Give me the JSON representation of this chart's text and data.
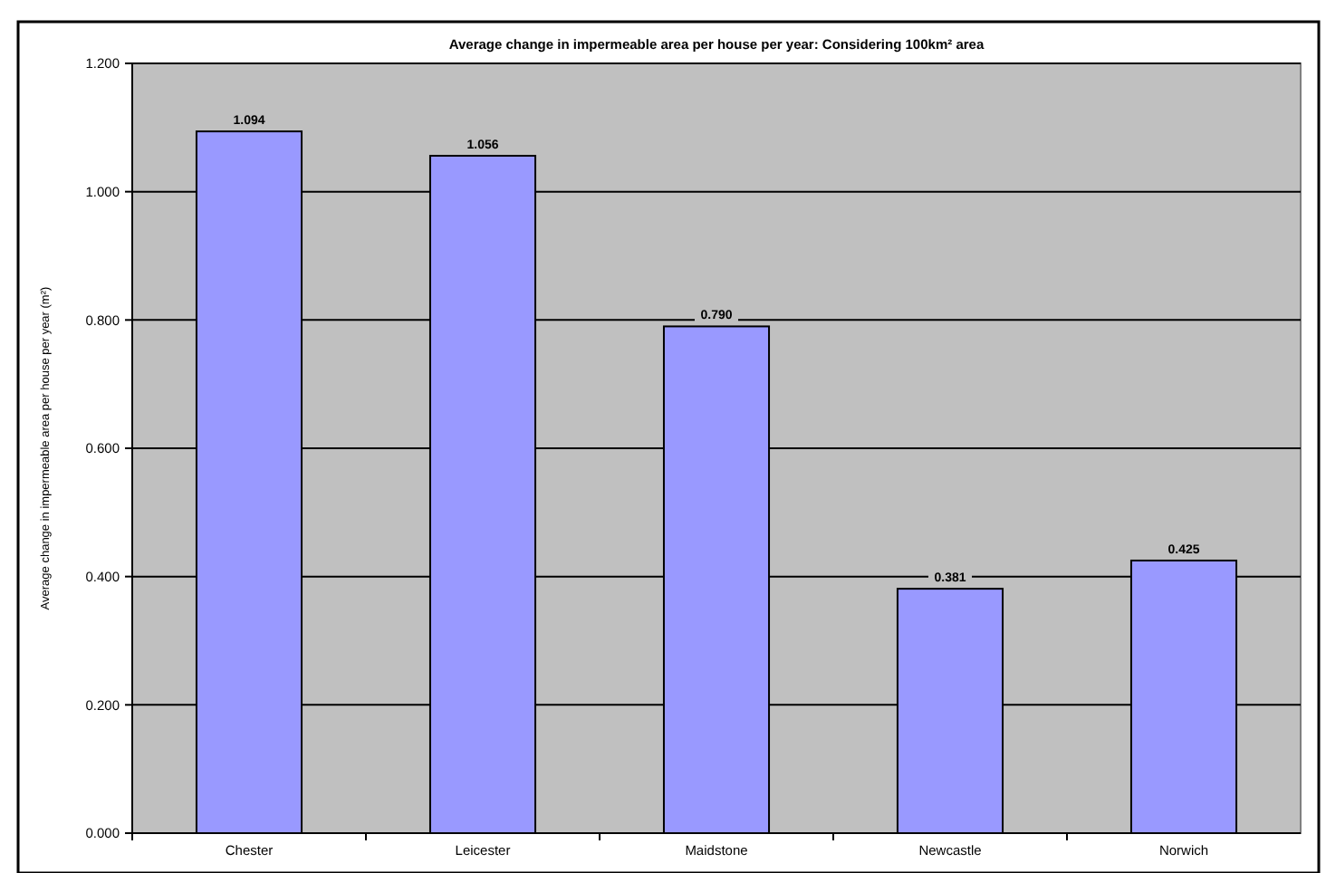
{
  "chart_data": {
    "type": "bar",
    "title": "Average change in impermeable area per house per year: Considering 100km² area",
    "ylabel": "Average change in impermeable area per house per year (m²)",
    "categories": [
      "Chester",
      "Leicester",
      "Maidstone",
      "Newcastle",
      "Norwich"
    ],
    "values": [
      1.094,
      1.056,
      0.79,
      0.381,
      0.425
    ],
    "value_labels": [
      "1.094",
      "1.056",
      "0.790",
      "0.381",
      "0.425"
    ],
    "color": "#9999ff",
    "ylim": [
      0,
      1.2
    ],
    "yticks": [
      {
        "value": 0,
        "label": "0.000"
      },
      {
        "value": 0.2,
        "label": "0.200"
      },
      {
        "value": 0.4,
        "label": "0.400"
      },
      {
        "value": 0.6,
        "label": "0.600"
      },
      {
        "value": 0.8,
        "label": "0.800"
      },
      {
        "value": 1,
        "label": "1.000"
      },
      {
        "value": 1.2,
        "label": "1.200"
      }
    ],
    "grid": "y"
  }
}
